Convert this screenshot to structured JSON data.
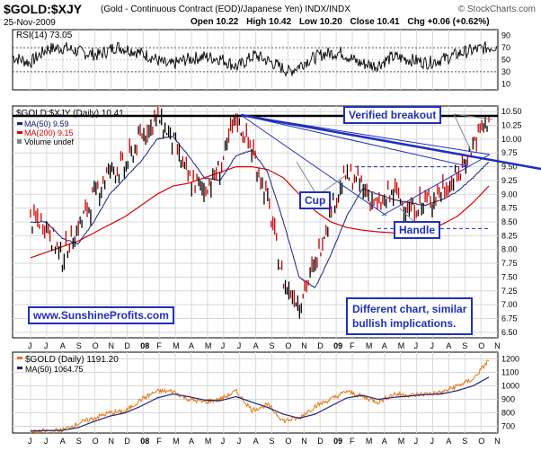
{
  "header": {
    "ticker": "$GOLD:$XJY",
    "description": "(Gold - Continuous Contract (EOD)/Japanese Yen)  INDX/INDX",
    "brand": "© StockCharts.com",
    "date": "25-Nov-2009",
    "open": "Open 10.22",
    "high": "High 10.42",
    "low": "Low 10.20",
    "close": "Close 10.41",
    "chg": "Chg +0.06 (+0.62%)"
  },
  "annotations": {
    "verified": "Verified breakout",
    "cup": "Cup",
    "handle": "Handle",
    "website": "www.SunshineProfits.com",
    "note_line1": "Different chart, similar",
    "note_line2": "bullish implications."
  },
  "colors": {
    "price_down": "#cc0000",
    "price_up": "#000000",
    "ma50": "#1a237e",
    "ma200": "#dd0000",
    "trend": "#1f2fbf",
    "gold": "#e87511",
    "gold_ma": "#1a237e",
    "grid": "#d8d8d8"
  },
  "chart_data": [
    {
      "type": "line",
      "title": "RSI(14) 73.05",
      "ylim": [
        0,
        100
      ],
      "y_ticks": [
        "90",
        "70",
        "50",
        "30",
        "10"
      ],
      "reference_lines": [
        70,
        30
      ],
      "x": [
        "2007-07",
        "2007-08",
        "2007-09",
        "2007-10",
        "2007-11",
        "2007-12",
        "2008-01",
        "2008-02",
        "2008-03",
        "2008-04",
        "2008-05",
        "2008-06",
        "2008-07",
        "2008-08",
        "2008-09",
        "2008-10",
        "2008-11",
        "2008-12",
        "2009-01",
        "2009-02",
        "2009-03",
        "2009-04",
        "2009-05",
        "2009-06",
        "2009-07",
        "2009-08",
        "2009-09",
        "2009-10",
        "2009-11"
      ],
      "values": [
        55,
        45,
        68,
        70,
        62,
        58,
        72,
        65,
        55,
        40,
        50,
        55,
        52,
        38,
        58,
        45,
        30,
        48,
        60,
        62,
        45,
        40,
        55,
        50,
        45,
        52,
        62,
        68,
        73
      ]
    },
    {
      "type": "line",
      "title": "$GOLD:$XJY (Daily) 10.41",
      "ylim": [
        6.4,
        10.6
      ],
      "y_ticks": [
        "10.50",
        "10.25",
        "10.00",
        "9.75",
        "9.50",
        "9.25",
        "9.00",
        "8.75",
        "8.50",
        "8.25",
        "8.00",
        "7.75",
        "7.50",
        "7.25",
        "7.00",
        "6.75",
        "6.50"
      ],
      "x_ticks": [
        "J",
        "J",
        "A",
        "S",
        "O",
        "N",
        "D",
        "08",
        "F",
        "M",
        "A",
        "M",
        "J",
        "J",
        "A",
        "S",
        "O",
        "N",
        "D",
        "09",
        "F",
        "M",
        "A",
        "M",
        "J",
        "J",
        "A",
        "S",
        "O",
        "N"
      ],
      "legend": [
        "$GOLD:$XJY (Daily) 10.41",
        "MA(50) 9.59",
        "MA(200) 9.15",
        "Volume undef"
      ],
      "x": [
        "2007-06",
        "2007-07",
        "2007-08",
        "2007-09",
        "2007-10",
        "2007-11",
        "2007-12",
        "2008-01",
        "2008-02",
        "2008-03",
        "2008-04",
        "2008-05",
        "2008-06",
        "2008-07",
        "2008-08",
        "2008-09",
        "2008-10",
        "2008-11",
        "2008-12",
        "2009-01",
        "2009-02",
        "2009-03",
        "2009-04",
        "2009-05",
        "2009-06",
        "2009-07",
        "2009-08",
        "2009-09",
        "2009-10",
        "2009-11"
      ],
      "series": [
        {
          "name": "$GOLD:$XJY (Daily) 10.41",
          "values": [
            8.55,
            8.45,
            7.85,
            8.4,
            8.95,
            9.45,
            9.5,
            10.05,
            10.4,
            10.0,
            9.25,
            9.1,
            9.45,
            10.4,
            9.8,
            8.9,
            7.4,
            7.05,
            7.7,
            8.75,
            9.35,
            9.15,
            8.75,
            9.05,
            8.7,
            8.85,
            9.05,
            9.3,
            9.9,
            10.41
          ]
        },
        {
          "name": "MA(50) 9.59",
          "values": [
            8.5,
            8.5,
            8.2,
            8.1,
            8.5,
            9.0,
            9.3,
            9.6,
            10.0,
            10.05,
            9.7,
            9.3,
            9.25,
            9.7,
            9.8,
            9.4,
            8.5,
            7.5,
            7.3,
            7.9,
            8.6,
            9.1,
            9.0,
            8.9,
            8.85,
            8.8,
            8.9,
            9.05,
            9.3,
            9.59
          ]
        },
        {
          "name": "MA(200) 9.15",
          "values": [
            7.85,
            7.95,
            8.05,
            8.15,
            8.3,
            8.45,
            8.6,
            8.8,
            9.0,
            9.15,
            9.2,
            9.3,
            9.4,
            9.5,
            9.5,
            9.45,
            9.3,
            9.0,
            8.7,
            8.5,
            8.4,
            8.35,
            8.32,
            8.3,
            8.3,
            8.35,
            8.45,
            8.6,
            8.85,
            9.15
          ]
        }
      ]
    },
    {
      "type": "line",
      "title": "$GOLD (Daily) 1191.20",
      "ylim": [
        650,
        1250
      ],
      "y_ticks": [
        "1200",
        "1100",
        "1000",
        "900",
        "800",
        "700"
      ],
      "x_ticks": [
        "J",
        "J",
        "A",
        "S",
        "O",
        "N",
        "D",
        "08",
        "F",
        "M",
        "A",
        "M",
        "J",
        "J",
        "A",
        "S",
        "O",
        "N",
        "D",
        "09",
        "F",
        "M",
        "A",
        "M",
        "J",
        "J",
        "A",
        "S",
        "O",
        "N"
      ],
      "legend": [
        "$GOLD (Daily) 1191.20",
        "MA(50) 1064.75"
      ],
      "x": [
        "2007-06",
        "2007-07",
        "2007-08",
        "2007-09",
        "2007-10",
        "2007-11",
        "2007-12",
        "2008-01",
        "2008-02",
        "2008-03",
        "2008-04",
        "2008-05",
        "2008-06",
        "2008-07",
        "2008-08",
        "2008-09",
        "2008-10",
        "2008-11",
        "2008-12",
        "2009-01",
        "2009-02",
        "2009-03",
        "2009-04",
        "2009-05",
        "2009-06",
        "2009-07",
        "2009-08",
        "2009-09",
        "2009-10",
        "2009-11"
      ],
      "series": [
        {
          "name": "$GOLD (Daily) 1191.20",
          "values": [
            655,
            665,
            670,
            720,
            760,
            800,
            810,
            900,
            960,
            960,
            900,
            880,
            900,
            960,
            820,
            860,
            740,
            760,
            850,
            900,
            960,
            920,
            880,
            940,
            930,
            940,
            950,
            1000,
            1050,
            1191
          ]
        },
        {
          "name": "MA(50) 1064.75",
          "values": [
            665,
            668,
            670,
            690,
            735,
            775,
            800,
            850,
            910,
            940,
            920,
            895,
            890,
            920,
            880,
            840,
            790,
            760,
            790,
            850,
            910,
            930,
            900,
            915,
            925,
            935,
            940,
            965,
            1000,
            1064.75
          ]
        }
      ]
    }
  ]
}
